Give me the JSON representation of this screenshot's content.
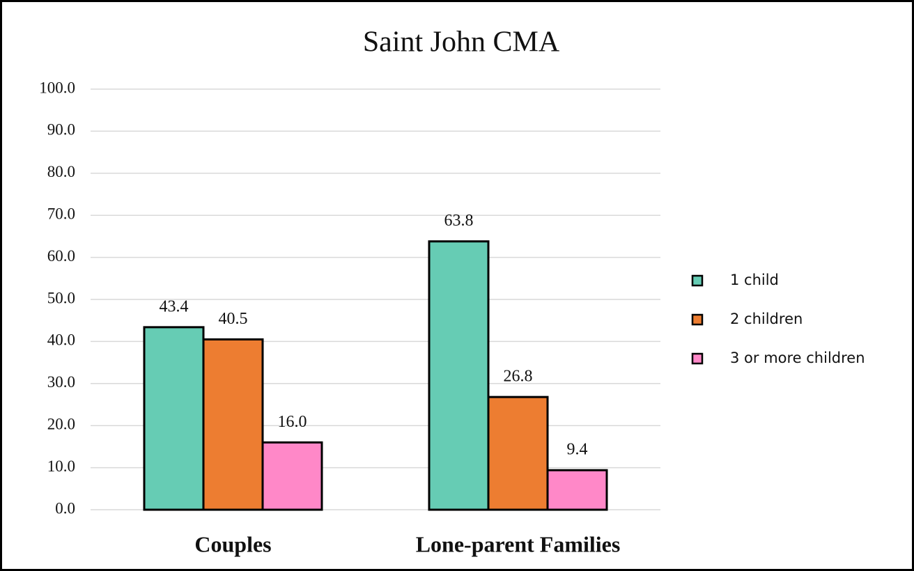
{
  "chart_data": {
    "type": "bar",
    "title": "Saint John CMA",
    "categories": [
      "Couples",
      "Lone-parent Families"
    ],
    "series": [
      {
        "name": "1 child",
        "color": "#66ccb4",
        "values": [
          43.4,
          63.8
        ],
        "value_labels": [
          "43.4",
          "63.8"
        ]
      },
      {
        "name": "2 children",
        "color": "#ed7d31",
        "values": [
          40.5,
          26.8
        ],
        "value_labels": [
          "40.5",
          "26.8"
        ]
      },
      {
        "name": "3 or more children",
        "color": "#ff88c8",
        "values": [
          16.0,
          9.4
        ],
        "value_labels": [
          "16.0",
          "9.4"
        ]
      }
    ],
    "ylim": [
      0,
      100
    ],
    "yticks": [
      {
        "value": 0,
        "label": "0.0"
      },
      {
        "value": 10,
        "label": "10.0"
      },
      {
        "value": 20,
        "label": "20.0"
      },
      {
        "value": 30,
        "label": "30.0"
      },
      {
        "value": 40,
        "label": "40.0"
      },
      {
        "value": 50,
        "label": "50.0"
      },
      {
        "value": 60,
        "label": "60.0"
      },
      {
        "value": 70,
        "label": "70.0"
      },
      {
        "value": 80,
        "label": "80.0"
      },
      {
        "value": 90,
        "label": "90.0"
      },
      {
        "value": 100,
        "label": "100.0"
      }
    ],
    "grid": true,
    "legend": "right"
  }
}
